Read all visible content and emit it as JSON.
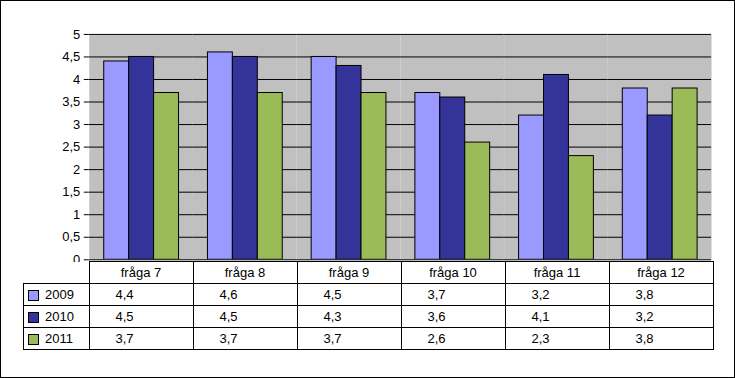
{
  "chart_data": {
    "type": "bar",
    "categories": [
      "fråga 7",
      "fråga 8",
      "fråga 9",
      "fråga 10",
      "fråga 11",
      "fråga 12"
    ],
    "series": [
      {
        "name": "2009",
        "color": "#9999ff",
        "values": [
          4.4,
          4.6,
          4.5,
          3.7,
          3.2,
          3.8
        ],
        "value_labels": [
          "4,4",
          "4,6",
          "4,5",
          "3,7",
          "3,2",
          "3,8"
        ]
      },
      {
        "name": "2010",
        "color": "#333399",
        "values": [
          4.5,
          4.5,
          4.3,
          3.6,
          4.1,
          3.2
        ],
        "value_labels": [
          "4,5",
          "4,5",
          "4,3",
          "3,6",
          "4,1",
          "3,2"
        ]
      },
      {
        "name": "2011",
        "color": "#9bbb59",
        "values": [
          3.7,
          3.7,
          3.7,
          2.6,
          2.3,
          3.8
        ],
        "value_labels": [
          "3,7",
          "3,7",
          "3,7",
          "2,6",
          "2,3",
          "3,8"
        ]
      }
    ],
    "ylim": [
      0,
      5
    ],
    "yticks": [
      0,
      {
        "value": 0.5,
        "label": "0,5"
      },
      1,
      {
        "value": 1.5,
        "label": "1,5"
      },
      2,
      {
        "value": 2.5,
        "label": "2,5"
      },
      3,
      {
        "value": 3.5,
        "label": "3,5"
      },
      4,
      {
        "value": 4.5,
        "label": "4,5"
      },
      5
    ],
    "grid": true
  }
}
